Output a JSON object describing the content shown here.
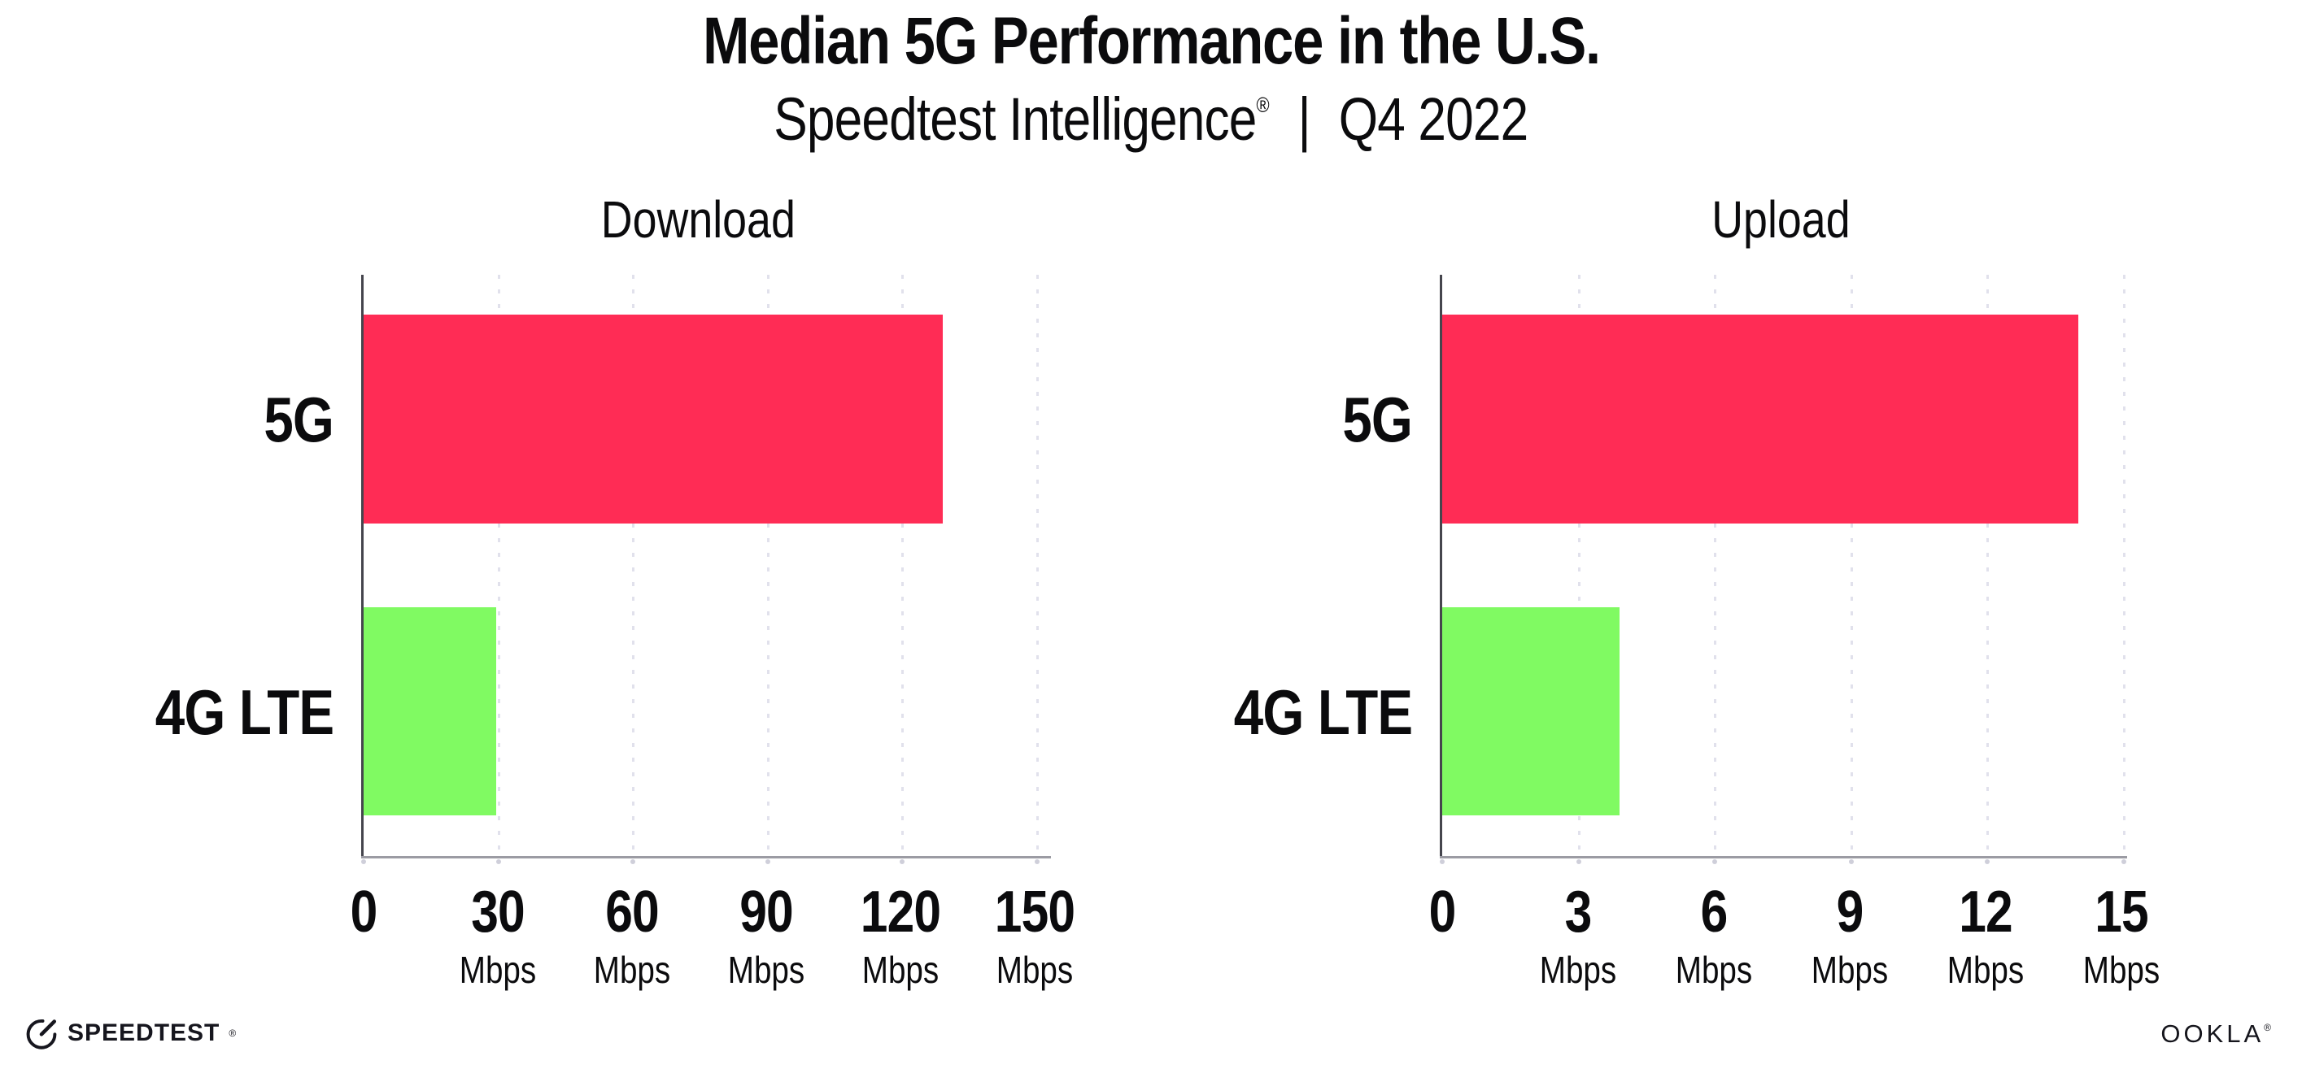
{
  "header": {
    "title": "Median 5G Performance in the U.S.",
    "subtitle": {
      "brand": "Speedtest Intelligence",
      "registered": "®",
      "divider": "|",
      "period": "Q4 2022"
    }
  },
  "chart_data": [
    {
      "type": "bar",
      "orientation": "horizontal",
      "title": "Download",
      "categories": [
        "5G",
        "4G LTE"
      ],
      "values": [
        129,
        29.5
      ],
      "unit": "Mbps",
      "xlim": [
        0,
        150
      ],
      "xticks": [
        0,
        30,
        60,
        90,
        120,
        150
      ],
      "bar_colors": [
        "#FF2C55",
        "#80FA62"
      ],
      "grid": "dotted-vertical-at-ticks",
      "legend": "none"
    },
    {
      "type": "bar",
      "orientation": "horizontal",
      "title": "Upload",
      "categories": [
        "5G",
        "4G LTE"
      ],
      "values": [
        14,
        3.9
      ],
      "unit": "Mbps",
      "xlim": [
        0,
        15
      ],
      "xticks": [
        0,
        3,
        6,
        9,
        12,
        15
      ],
      "bar_colors": [
        "#FF2C55",
        "#80FA62"
      ],
      "grid": "dotted-vertical-at-ticks",
      "legend": "none"
    }
  ],
  "footer": {
    "speedtest_wordmark": "SPEEDTEST",
    "speedtest_registered": "®",
    "ookla_wordmark": "OOKLA",
    "ookla_registered": "®"
  },
  "colors": {
    "background": "#FFFFFF",
    "text": "#0B0B0D",
    "bar_5g": "#FF2C55",
    "bar_4g_lte": "#80FA62",
    "spine": "#45454D",
    "axis_line": "#9B9BA3",
    "gridline": "#E1E1EC",
    "tick_dot": "#CFCFDA"
  }
}
